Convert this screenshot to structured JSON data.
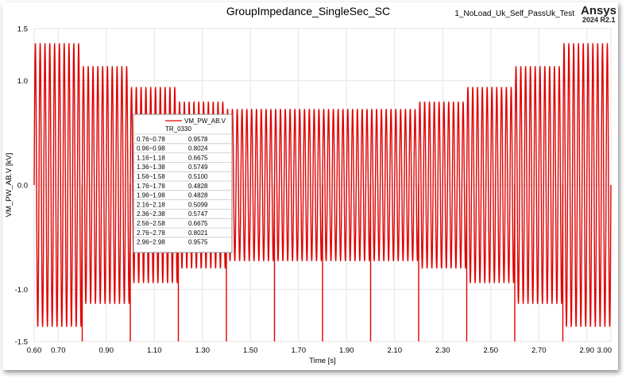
{
  "chart_data": {
    "type": "line",
    "title": "GroupImpedance_SingleSec_SC",
    "subtitle": "1_NoLoad_Uk_Self_PassUk_Test",
    "brand": "Ansys",
    "version": "2024 R2.1",
    "xlabel": "Time [s]",
    "ylabel": "VM_PW_AB.V [kV]",
    "xlim": [
      0.6,
      3.0
    ],
    "ylim": [
      -1.5,
      1.5
    ],
    "x_ticks": [
      "0.60",
      "0.70",
      "0.90",
      "1.10",
      "1.30",
      "1.50",
      "1.70",
      "1.90",
      "2.10",
      "2.30",
      "2.50",
      "2.70",
      "2.90",
      "3.00"
    ],
    "y_ticks": [
      "1.5",
      "1.0",
      "0.0",
      "-1.0",
      "-1.5"
    ],
    "grid": true,
    "series": [
      {
        "name": "VM_PW_AB.V",
        "color": "#e00000",
        "frequency_hz": 50,
        "segment_length_s": 0.2,
        "segment_start_s": 0.6,
        "segment_amplitudes_kv": [
          1.36,
          1.14,
          0.94,
          0.8,
          0.73,
          0.73,
          0.73,
          0.73,
          0.8,
          0.94,
          1.14,
          1.36
        ]
      }
    ],
    "legend": {
      "placement": "upper-left",
      "series_name": "VM_PW_AB.V",
      "group": "TR_0330",
      "rows": [
        {
          "range": "0.76~0.78",
          "value": "0.9578"
        },
        {
          "range": "0.96~0.98",
          "value": "0.8024"
        },
        {
          "range": "1.16~1.18",
          "value": "0.6675"
        },
        {
          "range": "1.36~1.38",
          "value": "0.5749"
        },
        {
          "range": "1.56~1.58",
          "value": "0.5100"
        },
        {
          "range": "1.76~1.78",
          "value": "0.4828"
        },
        {
          "range": "1.96~1.98",
          "value": "0.4828"
        },
        {
          "range": "2.16~2.18",
          "value": "0.5099"
        },
        {
          "range": "2.36~2.38",
          "value": "0.5747"
        },
        {
          "range": "2.56~2.58",
          "value": "0.6675"
        },
        {
          "range": "2.76~2.78",
          "value": "0.8021"
        },
        {
          "range": "2.96~2.98",
          "value": "0.9575"
        }
      ]
    }
  }
}
